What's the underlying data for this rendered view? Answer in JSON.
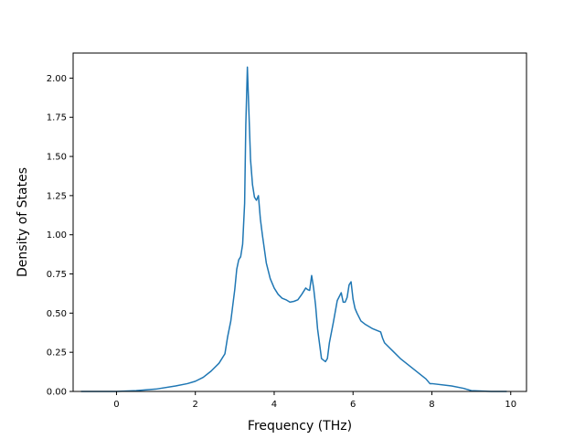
{
  "chart_data": {
    "type": "line",
    "xlabel": "Frequency (THz)",
    "ylabel": "Density of States",
    "xlim": [
      -1.1,
      10.4
    ],
    "ylim": [
      0,
      2.16
    ],
    "x_ticks": [
      0,
      2,
      4,
      6,
      8,
      10
    ],
    "x_tick_labels": [
      "0",
      "2",
      "4",
      "6",
      "8",
      "10"
    ],
    "y_ticks": [
      0,
      0.25,
      0.5,
      0.75,
      1.0,
      1.25,
      1.5,
      1.75,
      2.0
    ],
    "y_tick_labels": [
      "0.00",
      "0.25",
      "0.50",
      "0.75",
      "1.00",
      "1.25",
      "1.50",
      "1.75",
      "2.00"
    ],
    "grid": false,
    "legend": "none",
    "line_color": "#1f77b4",
    "series": [
      {
        "x": [
          -0.9,
          0.0,
          0.5,
          1.0,
          1.5,
          1.8,
          2.0,
          2.2,
          2.4,
          2.6,
          2.75,
          2.82,
          2.9,
          3.0,
          3.05,
          3.1,
          3.15,
          3.2,
          3.25,
          3.28,
          3.32,
          3.35,
          3.4,
          3.45,
          3.5,
          3.55,
          3.6,
          3.65,
          3.7,
          3.8,
          3.9,
          4.0,
          4.1,
          4.2,
          4.3,
          4.4,
          4.5,
          4.6,
          4.7,
          4.8,
          4.85,
          4.9,
          4.95,
          5.0,
          5.05,
          5.1,
          5.2,
          5.3,
          5.35,
          5.4,
          5.5,
          5.6,
          5.7,
          5.75,
          5.8,
          5.85,
          5.9,
          5.95,
          6.0,
          6.05,
          6.1,
          6.2,
          6.3,
          6.5,
          6.7,
          6.75,
          6.8,
          7.0,
          7.2,
          7.5,
          7.7,
          7.85,
          7.95,
          8.0,
          8.5,
          8.8,
          9.0,
          9.5,
          9.9
        ],
        "y": [
          0.0,
          0.0,
          0.005,
          0.015,
          0.035,
          0.05,
          0.065,
          0.09,
          0.13,
          0.18,
          0.24,
          0.35,
          0.45,
          0.65,
          0.78,
          0.84,
          0.86,
          0.94,
          1.2,
          1.7,
          2.07,
          1.85,
          1.48,
          1.32,
          1.24,
          1.22,
          1.25,
          1.1,
          1.0,
          0.82,
          0.72,
          0.66,
          0.62,
          0.595,
          0.585,
          0.57,
          0.575,
          0.585,
          0.62,
          0.66,
          0.65,
          0.645,
          0.74,
          0.66,
          0.55,
          0.4,
          0.21,
          0.19,
          0.21,
          0.31,
          0.44,
          0.58,
          0.63,
          0.57,
          0.57,
          0.6,
          0.68,
          0.7,
          0.59,
          0.53,
          0.5,
          0.45,
          0.43,
          0.4,
          0.38,
          0.34,
          0.31,
          0.26,
          0.21,
          0.15,
          0.11,
          0.08,
          0.05,
          0.05,
          0.035,
          0.02,
          0.005,
          0.0,
          0.0
        ]
      }
    ]
  }
}
